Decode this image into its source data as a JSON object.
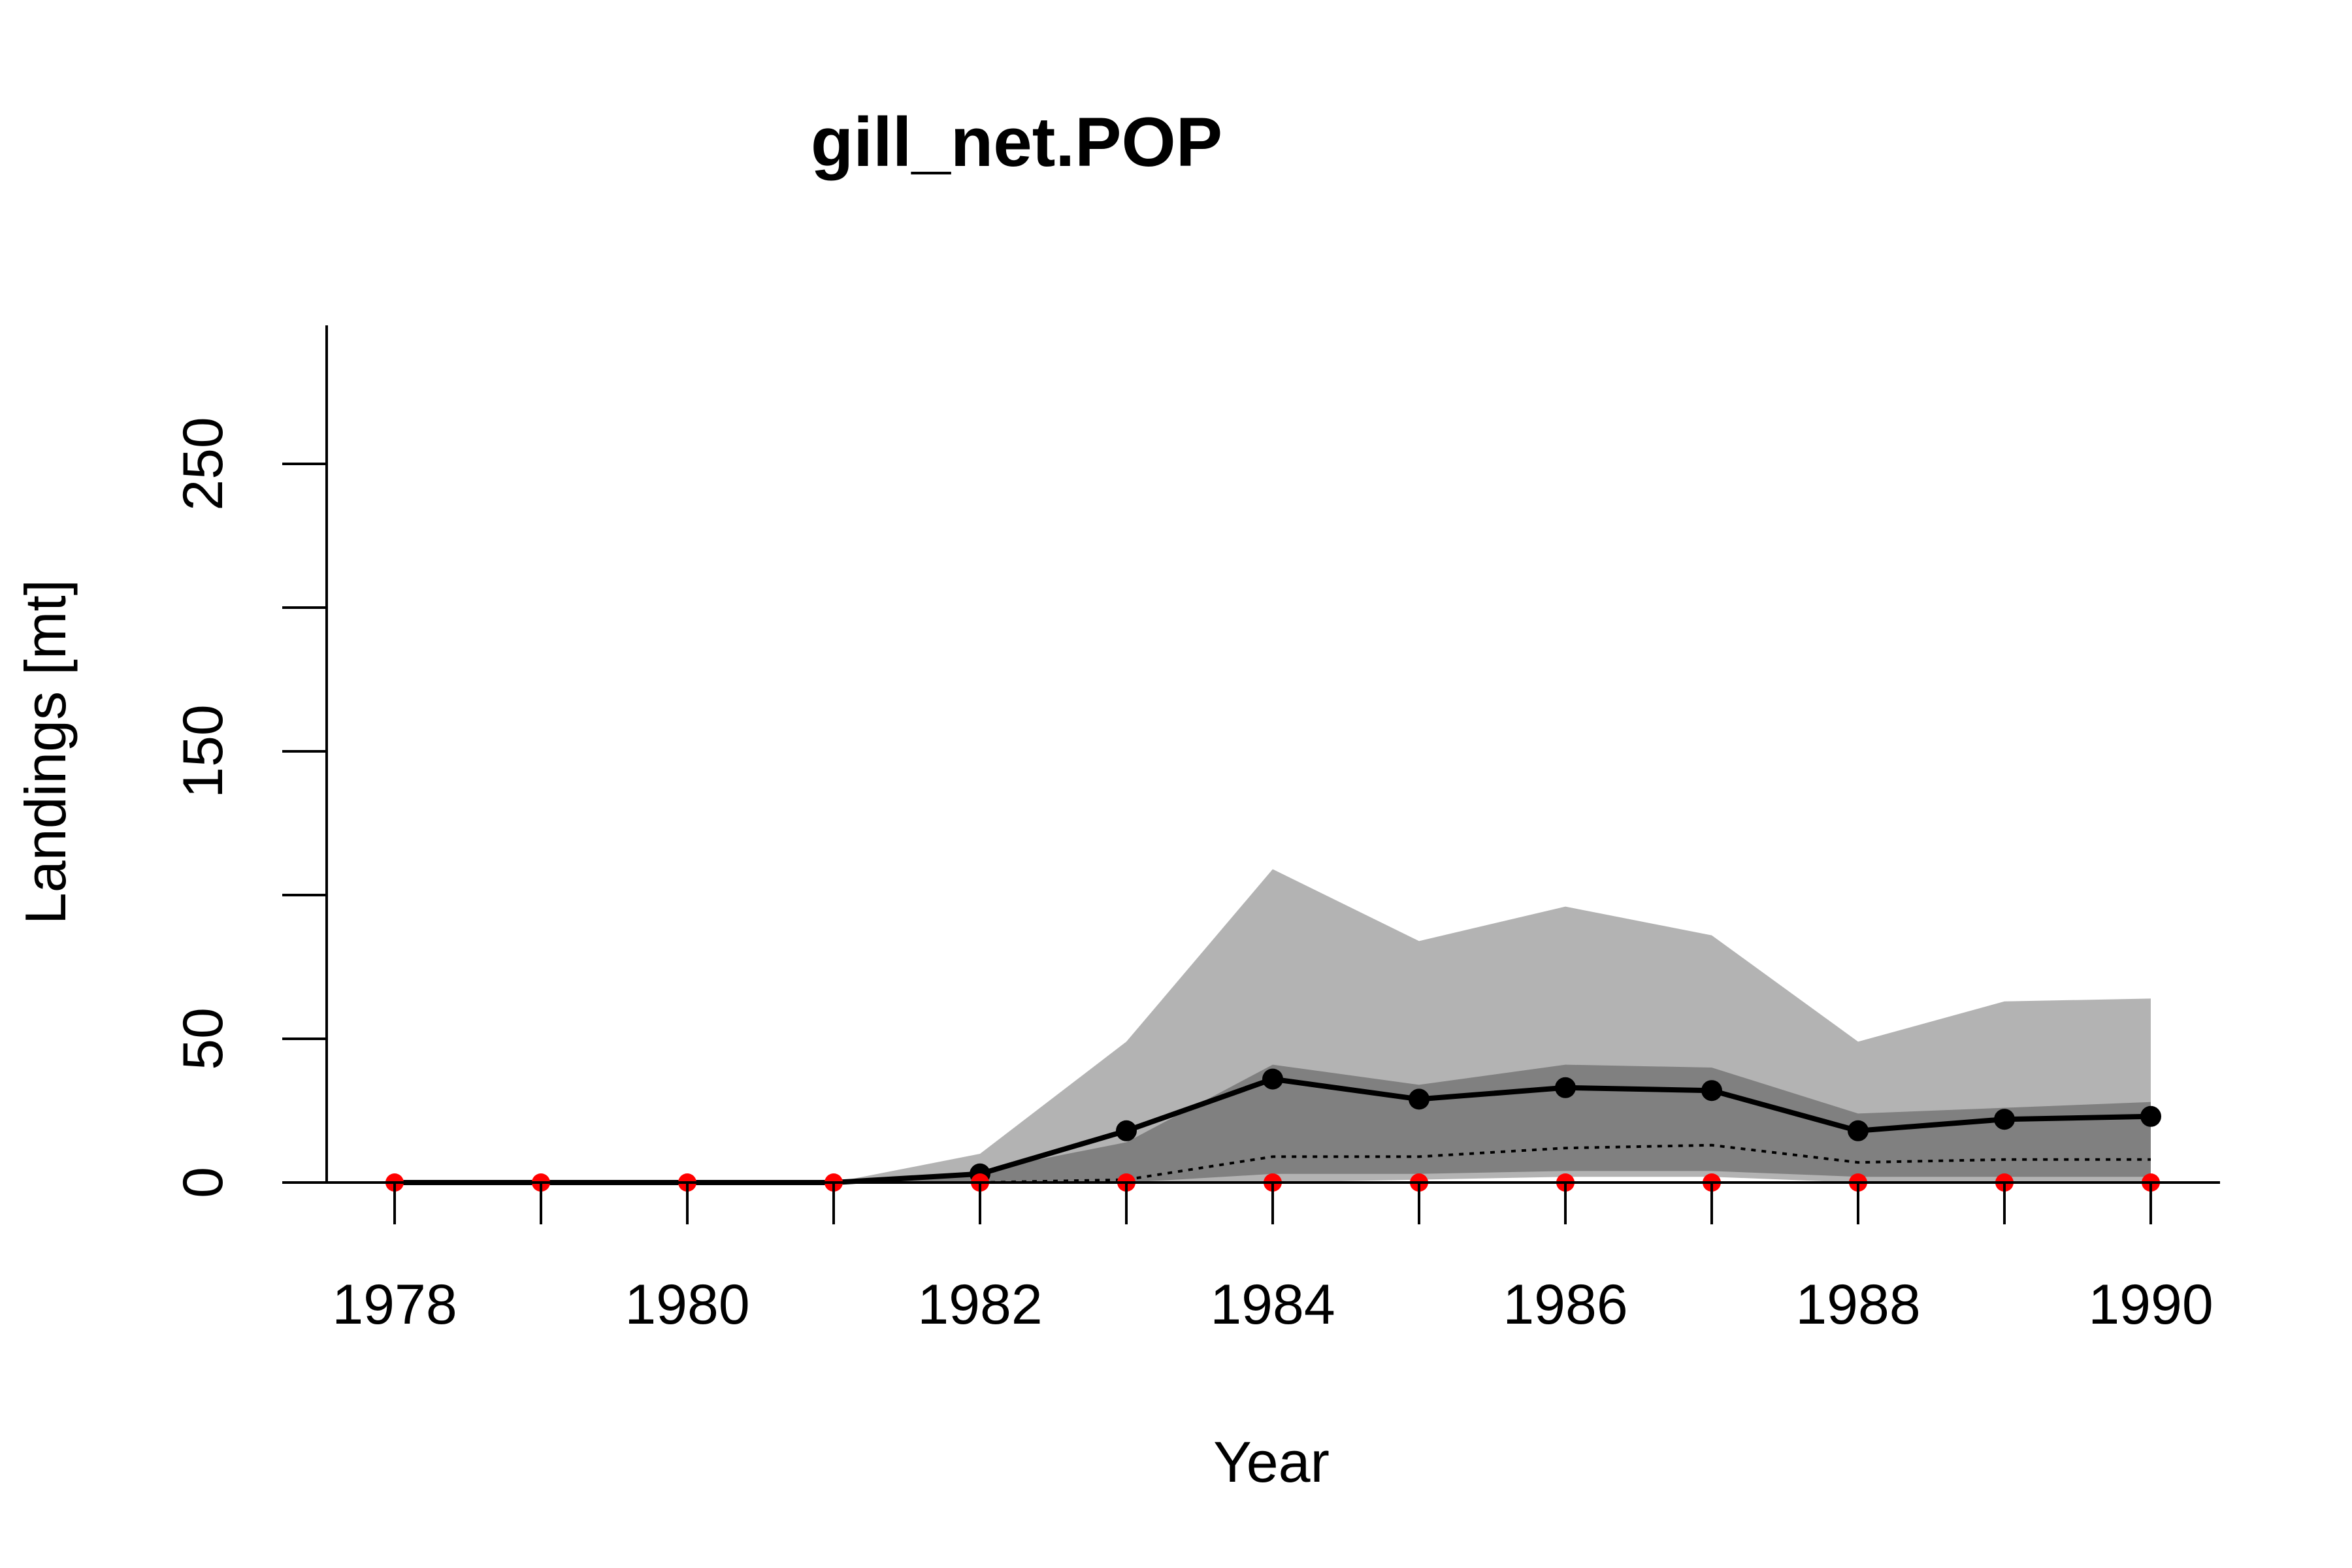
{
  "chart_data": {
    "type": "area",
    "title": "gill_net.POP",
    "xlabel": "Year",
    "ylabel": "Landings [mt]",
    "xlim": [
      1977.5,
      1990.5
    ],
    "ylim": [
      0,
      300
    ],
    "x_ticks": [
      "1978",
      "1980",
      "1982",
      "1984",
      "1986",
      "1988",
      "1990"
    ],
    "y_ticks": [
      "0",
      "50",
      "150",
      "250"
    ],
    "y_minor_ticks": [
      100,
      200
    ],
    "grid": false,
    "legend": "none",
    "x": [
      1978,
      1979,
      1980,
      1981,
      1982,
      1983,
      1984,
      1985,
      1986,
      1987,
      1988,
      1989,
      1990
    ],
    "series": [
      {
        "role": "outer-band-upper",
        "color": "#b3b3b3",
        "values": [
          0,
          0,
          0,
          0,
          10,
          49,
          109,
          84,
          96,
          86,
          49,
          63,
          64
        ]
      },
      {
        "role": "outer-band-lower",
        "color": "#b3b3b3",
        "values": [
          0,
          0,
          0,
          0,
          0,
          0,
          0,
          1,
          2,
          2,
          0,
          0,
          0
        ]
      },
      {
        "role": "inner-band-upper",
        "color": "#808080",
        "values": [
          0,
          0,
          0,
          0,
          4,
          14,
          41,
          34,
          41,
          40,
          24,
          26,
          28
        ]
      },
      {
        "role": "inner-band-lower",
        "color": "#808080",
        "values": [
          0,
          0,
          0,
          0,
          0,
          0,
          3,
          3,
          4,
          4,
          2,
          2,
          2
        ]
      },
      {
        "role": "median-dotted",
        "color": "#000000",
        "values": [
          0,
          0,
          0,
          0,
          0,
          1,
          9,
          9,
          12,
          13,
          7,
          8,
          8
        ]
      },
      {
        "role": "mean-line",
        "color": "#000000",
        "values": [
          0,
          0,
          0,
          0,
          3,
          18,
          36,
          29,
          33,
          32,
          18,
          22,
          23
        ]
      },
      {
        "role": "observed-points",
        "color": "#ff0000",
        "values": [
          0,
          0,
          0,
          0,
          0,
          0,
          0,
          0,
          0,
          0,
          0,
          0,
          0
        ]
      }
    ]
  }
}
